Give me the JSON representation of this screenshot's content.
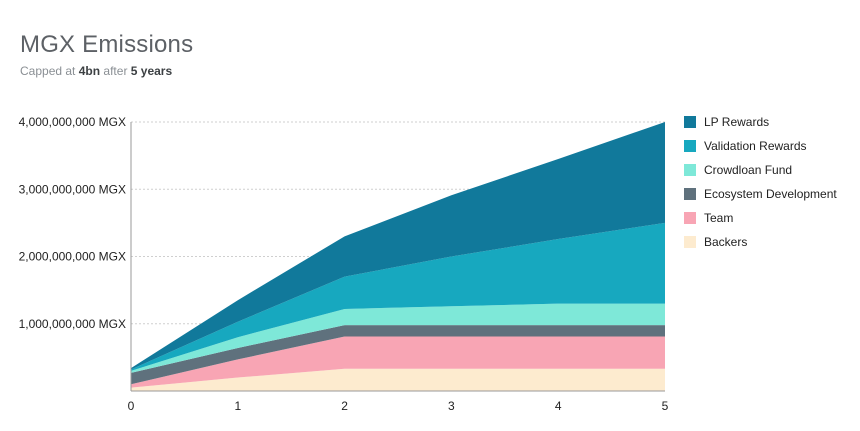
{
  "header": {
    "title": "MGX Emissions",
    "subtitle": {
      "prefix": "Capped  at",
      "cap": "4bn",
      "middle": "after",
      "duration": "5 years"
    }
  },
  "chart_data": {
    "type": "area",
    "stacked": true,
    "x": [
      0,
      1,
      2,
      3,
      4,
      5
    ],
    "xticks": [
      "0",
      "1",
      "2",
      "3",
      "4",
      "5"
    ],
    "xlim": [
      0,
      5
    ],
    "ylim": [
      0,
      4000000000
    ],
    "yticks": [
      {
        "value": 1000000000,
        "label": "1,000,000,000 MGX"
      },
      {
        "value": 2000000000,
        "label": "2,000,000,000 MGX"
      },
      {
        "value": 3000000000,
        "label": "3,000,000,000 MGX"
      },
      {
        "value": 4000000000,
        "label": "4,000,000,000 MGX"
      }
    ],
    "grid": true,
    "legend_position": "right",
    "series": [
      {
        "name": "Backers",
        "color": "#fdebcf",
        "values": [
          50000000,
          200000000,
          330000000,
          330000000,
          330000000,
          330000000
        ]
      },
      {
        "name": "Team",
        "color": "#f8a5b4",
        "values": [
          50000000,
          270000000,
          480000000,
          480000000,
          480000000,
          480000000
        ]
      },
      {
        "name": "Ecosystem Development",
        "color": "#5f717d",
        "values": [
          170000000,
          170000000,
          170000000,
          170000000,
          170000000,
          170000000
        ]
      },
      {
        "name": "Crowdloan Fund",
        "color": "#7ee8d8",
        "values": [
          30000000,
          160000000,
          240000000,
          280000000,
          320000000,
          320000000
        ]
      },
      {
        "name": "Validation Rewards",
        "color": "#17a8bf",
        "values": [
          20000000,
          230000000,
          480000000,
          740000000,
          960000000,
          1200000000
        ]
      },
      {
        "name": "LP Rewards",
        "color": "#11799b",
        "values": [
          20000000,
          320000000,
          600000000,
          910000000,
          1190000000,
          1500000000
        ]
      }
    ],
    "legend_order": [
      "LP Rewards",
      "Validation Rewards",
      "Crowdloan Fund",
      "Ecosystem Development",
      "Team",
      "Backers"
    ]
  }
}
